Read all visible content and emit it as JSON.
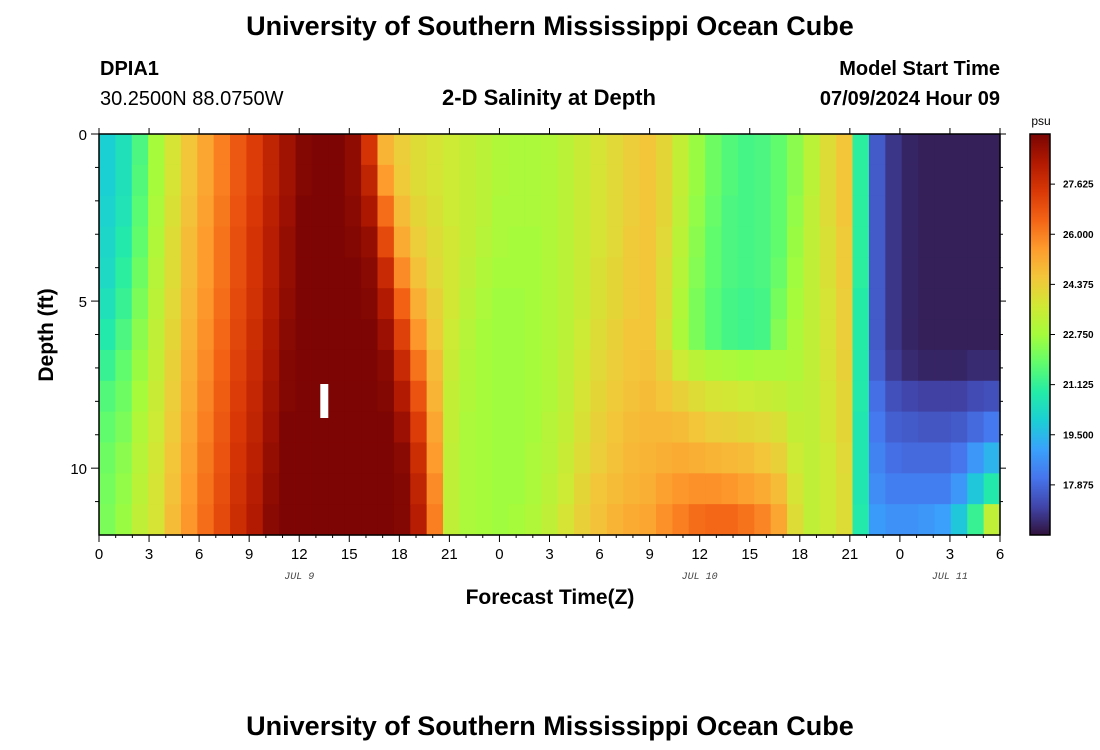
{
  "header": {
    "title": "University of Southern Mississippi Ocean Cube",
    "station_id": "DPIA1",
    "coords": "30.2500N  88.0750W",
    "subtitle": "2-D Salinity at Depth",
    "model_label": "Model Start Time",
    "model_time": "07/09/2024 Hour 09"
  },
  "footer": {
    "title": "University of Southern Mississippi Ocean Cube"
  },
  "chart_data": {
    "type": "heatmap",
    "title": "2-D Salinity at Depth",
    "xlabel": "Forecast Time(Z)",
    "ylabel": "Depth (ft)",
    "x_start_hour": 0,
    "x_end_hour": 54,
    "x_step_hours": 1,
    "xticks": [
      0,
      3,
      6,
      9,
      12,
      15,
      18,
      21,
      24,
      27,
      30,
      33,
      36,
      39,
      42,
      45,
      48,
      51,
      54
    ],
    "xtick_labels": [
      "0",
      "3",
      "6",
      "9",
      "12",
      "15",
      "18",
      "21",
      "0",
      "3",
      "6",
      "9",
      "12",
      "15",
      "18",
      "21",
      "0",
      "3",
      "6"
    ],
    "date_labels": [
      {
        "hour": 12,
        "text": "JUL 9"
      },
      {
        "hour": 36,
        "text": "JUL 10"
      },
      {
        "hour": 51,
        "text": "JUL 11"
      }
    ],
    "y_depths_ft": [
      0,
      1,
      2,
      3,
      4,
      5,
      6,
      7,
      8,
      9,
      10,
      11,
      12
    ],
    "ylim": [
      0,
      12
    ],
    "yticks": [
      0,
      5,
      10
    ],
    "y_minor_ticks": [
      1,
      2,
      3,
      4,
      6,
      7,
      8,
      9,
      11
    ],
    "now_marker_hour": 13.5,
    "colorbar": {
      "unit": "psu",
      "min": 16.25,
      "max": 29.25,
      "ticks": [
        "27.625",
        "26.000",
        "24.375",
        "22.750",
        "21.125",
        "19.500",
        "17.875"
      ],
      "colors": [
        "#30123b",
        "#4145ab",
        "#4675ed",
        "#39a2fc",
        "#1bcfd4",
        "#24eca6",
        "#61fc6c",
        "#a4fc3b",
        "#d1e834",
        "#f3c63a",
        "#fe9b2d",
        "#f36315",
        "#d93806",
        "#b11901",
        "#7a0403"
      ]
    },
    "salinity_profiles": [
      {
        "hour": 0,
        "values": [
          20.0,
          20.0,
          20.1,
          20.2,
          20.3,
          20.5,
          20.8,
          21.2,
          21.6,
          21.8,
          22.0,
          22.1,
          22.2
        ]
      },
      {
        "hour": 1,
        "values": [
          20.5,
          20.5,
          20.6,
          20.8,
          21.0,
          21.2,
          21.5,
          21.8,
          22.0,
          22.2,
          22.4,
          22.5,
          22.6
        ]
      },
      {
        "hour": 2,
        "values": [
          21.5,
          21.6,
          21.7,
          21.8,
          22.0,
          22.2,
          22.4,
          22.6,
          22.8,
          23.0,
          23.1,
          23.2,
          23.3
        ]
      },
      {
        "hour": 3,
        "values": [
          22.8,
          22.8,
          22.9,
          23.0,
          23.1,
          23.2,
          23.3,
          23.4,
          23.5,
          23.6,
          23.7,
          23.8,
          23.8
        ]
      },
      {
        "hour": 4,
        "values": [
          23.8,
          23.8,
          23.9,
          24.0,
          24.0,
          24.1,
          24.2,
          24.3,
          24.4,
          24.5,
          24.6,
          24.7,
          24.8
        ]
      },
      {
        "hour": 5,
        "values": [
          24.6,
          24.6,
          24.7,
          24.8,
          24.8,
          24.9,
          25.0,
          25.1,
          25.2,
          25.3,
          25.4,
          25.5,
          25.6
        ]
      },
      {
        "hour": 6,
        "values": [
          25.3,
          25.3,
          25.4,
          25.5,
          25.5,
          25.6,
          25.7,
          25.8,
          25.9,
          26.0,
          26.1,
          26.2,
          26.3
        ]
      },
      {
        "hour": 7,
        "values": [
          26.0,
          26.0,
          26.1,
          26.2,
          26.2,
          26.3,
          26.4,
          26.5,
          26.6,
          26.7,
          26.8,
          26.9,
          27.0
        ]
      },
      {
        "hour": 8,
        "values": [
          26.7,
          26.7,
          26.8,
          26.9,
          26.9,
          27.0,
          27.1,
          27.2,
          27.3,
          27.4,
          27.5,
          27.6,
          27.7
        ]
      },
      {
        "hour": 9,
        "values": [
          27.3,
          27.3,
          27.4,
          27.5,
          27.5,
          27.6,
          27.7,
          27.8,
          27.9,
          28.0,
          28.1,
          28.2,
          28.3
        ]
      },
      {
        "hour": 10,
        "values": [
          28.0,
          28.0,
          28.1,
          28.2,
          28.2,
          28.3,
          28.4,
          28.5,
          28.6,
          28.7,
          28.8,
          28.9,
          29.0
        ]
      },
      {
        "hour": 11,
        "values": [
          28.6,
          28.6,
          28.7,
          28.8,
          28.8,
          28.9,
          29.0,
          29.1,
          29.1,
          29.2,
          29.2,
          29.2,
          29.2
        ]
      },
      {
        "hour": 12,
        "values": [
          29.1,
          29.1,
          29.2,
          29.2,
          29.2,
          29.2,
          29.2,
          29.2,
          29.2,
          29.2,
          29.2,
          29.2,
          29.2
        ]
      },
      {
        "hour": 13,
        "values": [
          29.2,
          29.2,
          29.2,
          29.2,
          29.2,
          29.2,
          29.2,
          29.2,
          29.2,
          29.2,
          29.2,
          29.2,
          29.2
        ]
      },
      {
        "hour": 14,
        "values": [
          29.2,
          29.2,
          29.2,
          29.2,
          29.2,
          29.2,
          29.2,
          29.2,
          29.2,
          29.2,
          29.2,
          29.2,
          29.2
        ]
      },
      {
        "hour": 15,
        "values": [
          28.9,
          28.9,
          29.0,
          29.1,
          29.2,
          29.2,
          29.2,
          29.2,
          29.2,
          29.2,
          29.2,
          29.2,
          29.2
        ]
      },
      {
        "hour": 16,
        "values": [
          27.5,
          28.0,
          28.4,
          28.8,
          29.0,
          29.1,
          29.2,
          29.2,
          29.2,
          29.2,
          29.2,
          29.2,
          29.2
        ]
      },
      {
        "hour": 17,
        "values": [
          25.0,
          25.5,
          26.3,
          27.0,
          27.8,
          28.3,
          28.7,
          29.0,
          29.1,
          29.2,
          29.2,
          29.2,
          29.2
        ]
      },
      {
        "hour": 18,
        "values": [
          24.4,
          24.5,
          24.8,
          25.2,
          25.8,
          26.5,
          27.2,
          27.8,
          28.3,
          28.7,
          29.0,
          29.1,
          29.1
        ]
      },
      {
        "hour": 19,
        "values": [
          24.0,
          24.0,
          24.2,
          24.4,
          24.7,
          25.1,
          25.6,
          26.2,
          26.8,
          27.3,
          27.7,
          28.0,
          28.2
        ]
      },
      {
        "hour": 20,
        "values": [
          23.8,
          23.8,
          23.9,
          24.0,
          24.1,
          24.3,
          24.5,
          24.8,
          25.0,
          25.3,
          25.5,
          25.8,
          26.0
        ]
      },
      {
        "hour": 21,
        "values": [
          23.6,
          23.6,
          23.6,
          23.7,
          23.7,
          23.7,
          23.6,
          23.5,
          23.4,
          23.4,
          23.3,
          23.3,
          23.3
        ]
      },
      {
        "hour": 22,
        "values": [
          23.4,
          23.4,
          23.4,
          23.4,
          23.3,
          23.2,
          23.1,
          23.0,
          23.0,
          22.9,
          22.9,
          22.9,
          22.9
        ]
      },
      {
        "hour": 23,
        "values": [
          23.2,
          23.2,
          23.2,
          23.1,
          23.0,
          22.9,
          22.8,
          22.8,
          22.8,
          22.8,
          22.8,
          22.8,
          22.8
        ]
      },
      {
        "hour": 24,
        "values": [
          23.0,
          23.0,
          22.9,
          22.9,
          22.8,
          22.7,
          22.7,
          22.7,
          22.7,
          22.7,
          22.7,
          22.7,
          22.7
        ]
      },
      {
        "hour": 25,
        "values": [
          22.9,
          22.9,
          22.9,
          22.8,
          22.8,
          22.7,
          22.7,
          22.7,
          22.7,
          22.7,
          22.7,
          22.7,
          22.8
        ]
      },
      {
        "hour": 26,
        "values": [
          22.9,
          22.9,
          22.9,
          22.8,
          22.8,
          22.8,
          22.8,
          22.8,
          22.8,
          22.8,
          22.9,
          22.9,
          23.0
        ]
      },
      {
        "hour": 27,
        "values": [
          23.0,
          23.0,
          23.0,
          23.0,
          23.0,
          23.0,
          23.0,
          23.0,
          23.0,
          23.1,
          23.1,
          23.2,
          23.3
        ]
      },
      {
        "hour": 28,
        "values": [
          23.2,
          23.2,
          23.2,
          23.2,
          23.2,
          23.2,
          23.2,
          23.3,
          23.3,
          23.4,
          23.5,
          23.6,
          23.8
        ]
      },
      {
        "hour": 29,
        "values": [
          23.5,
          23.5,
          23.5,
          23.5,
          23.5,
          23.5,
          23.6,
          23.7,
          23.8,
          23.9,
          24.0,
          24.2,
          24.3
        ]
      },
      {
        "hour": 30,
        "values": [
          23.8,
          23.8,
          23.8,
          23.8,
          23.9,
          23.9,
          24.0,
          24.1,
          24.2,
          24.3,
          24.4,
          24.6,
          24.7
        ]
      },
      {
        "hour": 31,
        "values": [
          24.1,
          24.1,
          24.1,
          24.1,
          24.2,
          24.2,
          24.3,
          24.4,
          24.5,
          24.6,
          24.7,
          24.8,
          25.0
        ]
      },
      {
        "hour": 32,
        "values": [
          24.4,
          24.4,
          24.4,
          24.5,
          24.5,
          24.5,
          24.6,
          24.6,
          24.7,
          24.8,
          24.9,
          25.0,
          25.2
        ]
      },
      {
        "hour": 33,
        "values": [
          24.6,
          24.6,
          24.6,
          24.6,
          24.6,
          24.6,
          24.6,
          24.7,
          24.8,
          24.9,
          25.0,
          25.1,
          25.3
        ]
      },
      {
        "hour": 34,
        "values": [
          24.2,
          24.2,
          24.2,
          24.1,
          24.0,
          24.0,
          23.9,
          24.3,
          24.6,
          24.9,
          25.1,
          25.4,
          25.7
        ]
      },
      {
        "hour": 35,
        "values": [
          23.4,
          23.4,
          23.3,
          23.2,
          23.1,
          23.0,
          22.9,
          23.6,
          24.3,
          24.8,
          25.2,
          25.6,
          26.0
        ]
      },
      {
        "hour": 36,
        "values": [
          22.6,
          22.6,
          22.5,
          22.4,
          22.3,
          22.2,
          22.2,
          23.2,
          24.0,
          24.6,
          25.1,
          25.7,
          26.3
        ]
      },
      {
        "hour": 37,
        "values": [
          22.0,
          22.0,
          21.9,
          21.8,
          21.8,
          21.7,
          21.7,
          23.0,
          23.8,
          24.4,
          25.0,
          25.7,
          26.4
        ]
      },
      {
        "hour": 38,
        "values": [
          21.6,
          21.6,
          21.5,
          21.5,
          21.5,
          21.4,
          21.4,
          22.9,
          23.7,
          24.3,
          24.9,
          25.6,
          26.4
        ]
      },
      {
        "hour": 39,
        "values": [
          21.4,
          21.4,
          21.4,
          21.4,
          21.4,
          21.3,
          21.3,
          22.8,
          23.6,
          24.2,
          24.8,
          25.4,
          26.2
        ]
      },
      {
        "hour": 40,
        "values": [
          21.5,
          21.5,
          21.5,
          21.5,
          21.5,
          21.4,
          21.4,
          22.9,
          23.5,
          24.1,
          24.6,
          25.2,
          25.9
        ]
      },
      {
        "hour": 41,
        "values": [
          21.8,
          21.8,
          21.8,
          21.8,
          21.9,
          22.1,
          22.3,
          22.9,
          23.4,
          23.9,
          24.3,
          24.8,
          25.3
        ]
      },
      {
        "hour": 42,
        "values": [
          22.4,
          22.4,
          22.5,
          22.6,
          22.7,
          22.8,
          22.9,
          23.0,
          23.2,
          23.4,
          23.6,
          23.8,
          24.0
        ]
      },
      {
        "hour": 43,
        "values": [
          23.2,
          23.2,
          23.3,
          23.3,
          23.3,
          23.3,
          23.3,
          23.3,
          23.3,
          23.3,
          23.3,
          23.3,
          23.3
        ]
      },
      {
        "hour": 44,
        "values": [
          24.0,
          24.0,
          24.0,
          23.9,
          23.9,
          23.8,
          23.8,
          23.8,
          23.7,
          23.7,
          23.6,
          23.6,
          23.6
        ]
      },
      {
        "hour": 45,
        "values": [
          24.6,
          24.6,
          24.6,
          24.5,
          24.5,
          24.4,
          24.4,
          24.3,
          24.2,
          24.2,
          24.1,
          24.0,
          24.0
        ]
      },
      {
        "hour": 46,
        "values": [
          21.0,
          21.0,
          21.0,
          21.0,
          21.0,
          20.9,
          20.9,
          20.8,
          20.8,
          20.7,
          20.7,
          20.7,
          20.8
        ]
      },
      {
        "hour": 47,
        "values": [
          17.6,
          17.6,
          17.6,
          17.6,
          17.6,
          17.6,
          17.6,
          17.7,
          18.0,
          18.2,
          18.4,
          18.6,
          18.9
        ]
      },
      {
        "hour": 48,
        "values": [
          16.9,
          16.9,
          16.9,
          16.9,
          16.9,
          16.9,
          16.9,
          17.0,
          17.4,
          17.7,
          18.0,
          18.3,
          18.7
        ]
      },
      {
        "hour": 49,
        "values": [
          16.6,
          16.6,
          16.6,
          16.6,
          16.6,
          16.6,
          16.6,
          16.7,
          17.2,
          17.6,
          17.9,
          18.3,
          18.7
        ]
      },
      {
        "hour": 50,
        "values": [
          16.5,
          16.5,
          16.5,
          16.5,
          16.5,
          16.5,
          16.5,
          16.6,
          17.1,
          17.5,
          17.9,
          18.3,
          18.8
        ]
      },
      {
        "hour": 51,
        "values": [
          16.5,
          16.5,
          16.5,
          16.5,
          16.5,
          16.5,
          16.5,
          16.6,
          17.1,
          17.5,
          17.9,
          18.3,
          19.0
        ]
      },
      {
        "hour": 52,
        "values": [
          16.5,
          16.5,
          16.5,
          16.5,
          16.5,
          16.5,
          16.5,
          16.6,
          17.1,
          17.6,
          18.1,
          18.8,
          19.8
        ]
      },
      {
        "hour": 53,
        "values": [
          16.5,
          16.5,
          16.5,
          16.5,
          16.5,
          16.5,
          16.5,
          16.7,
          17.3,
          17.9,
          18.8,
          19.8,
          21.2
        ]
      },
      {
        "hour": 54,
        "values": [
          16.5,
          16.5,
          16.5,
          16.5,
          16.5,
          16.5,
          16.5,
          16.7,
          17.4,
          18.2,
          19.4,
          20.8,
          23.3
        ]
      }
    ]
  }
}
